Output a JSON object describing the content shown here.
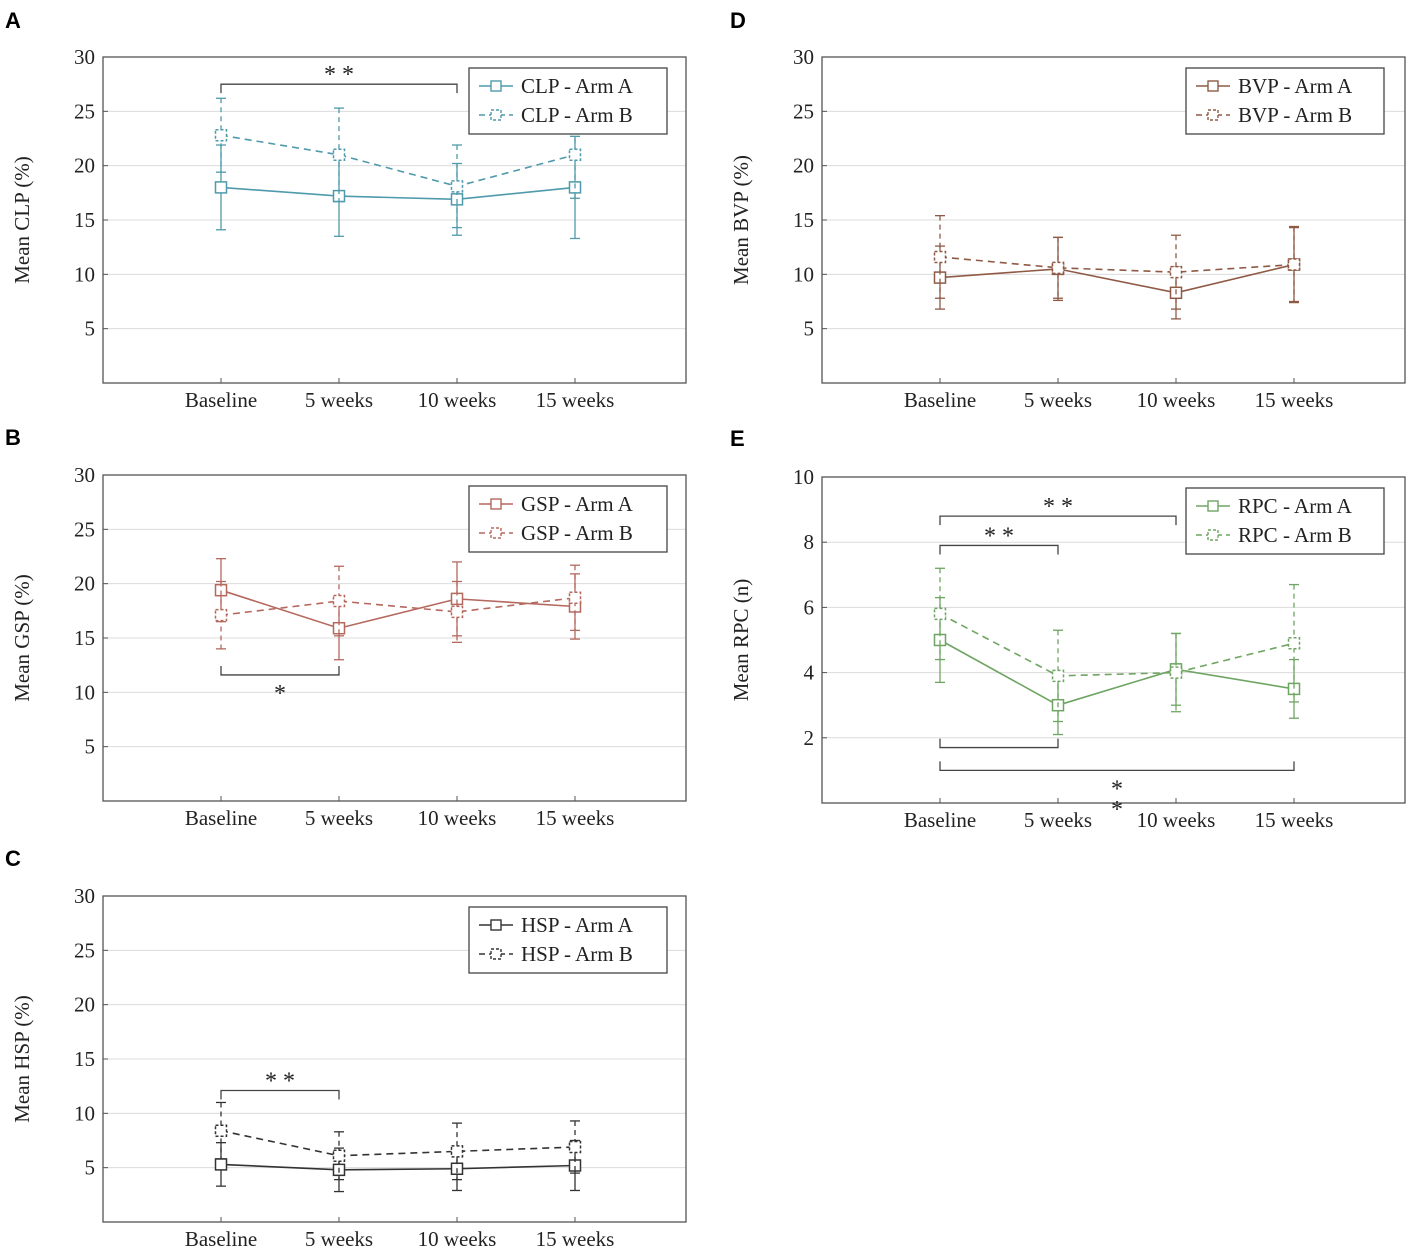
{
  "figure": {
    "x_categories": [
      "Baseline",
      "5 weeks",
      "10 weeks",
      "15 weeks"
    ]
  },
  "chart_data": [
    {
      "panel": "A",
      "type": "line",
      "ylabel": "Mean CLP (%)",
      "ylim": [
        0,
        30
      ],
      "yticks": [
        5,
        10,
        15,
        20,
        25,
        30
      ],
      "categories": [
        "Baseline",
        "5 weeks",
        "10 weeks",
        "15 weeks"
      ],
      "color": "#4f9aab",
      "legend_position": "top-right",
      "grid": true,
      "series": [
        {
          "name": "CLP - Arm A",
          "style": "solid",
          "values": [
            18.0,
            17.2,
            16.9,
            18.0
          ],
          "err": [
            3.9,
            3.7,
            3.3,
            4.7
          ]
        },
        {
          "name": "CLP - Arm B",
          "style": "dashed",
          "values": [
            22.8,
            21.0,
            18.1,
            21.0
          ],
          "err": [
            3.4,
            4.3,
            3.8,
            4.0
          ]
        }
      ],
      "significance": [
        {
          "from": "Baseline",
          "to": "10 weeks",
          "label": "* *",
          "at": 27.5,
          "side": "above"
        }
      ]
    },
    {
      "panel": "B",
      "type": "line",
      "ylabel": "Mean GSP (%)",
      "ylim": [
        0,
        30
      ],
      "yticks": [
        5,
        10,
        15,
        20,
        25,
        30
      ],
      "categories": [
        "Baseline",
        "5 weeks",
        "10 weeks",
        "15 weeks"
      ],
      "color": "#b5685e",
      "legend_position": "top-right",
      "grid": true,
      "series": [
        {
          "name": "GSP - Arm A",
          "style": "solid",
          "values": [
            19.4,
            15.9,
            18.6,
            17.9
          ],
          "err": [
            2.9,
            2.9,
            3.4,
            3.0
          ]
        },
        {
          "name": "GSP - Arm B",
          "style": "dashed",
          "values": [
            17.1,
            18.4,
            17.4,
            18.7
          ],
          "err": [
            3.1,
            3.2,
            2.8,
            3.0
          ]
        }
      ],
      "significance": [
        {
          "from": "Baseline",
          "to": "5 weeks",
          "label": "*",
          "at": 11.6,
          "side": "below"
        }
      ]
    },
    {
      "panel": "C",
      "type": "line",
      "ylabel": "Mean HSP (%)",
      "ylim": [
        0,
        30
      ],
      "yticks": [
        5,
        10,
        15,
        20,
        25,
        30
      ],
      "categories": [
        "Baseline",
        "5 weeks",
        "10 weeks",
        "15 weeks"
      ],
      "color": "#333333",
      "legend_position": "top-right",
      "grid": true,
      "series": [
        {
          "name": "HSP - Arm A",
          "style": "solid",
          "values": [
            5.3,
            4.8,
            4.9,
            5.2
          ],
          "err": [
            2.0,
            2.0,
            2.0,
            2.3
          ]
        },
        {
          "name": "HSP - Arm B",
          "style": "dashed",
          "values": [
            8.4,
            6.1,
            6.5,
            6.9
          ],
          "err": [
            2.6,
            2.2,
            2.6,
            2.4
          ]
        }
      ],
      "significance": [
        {
          "from": "Baseline",
          "to": "5 weeks",
          "label": "* *",
          "at": 12.1,
          "side": "above"
        }
      ]
    },
    {
      "panel": "D",
      "type": "line",
      "ylabel": "Mean BVP (%)",
      "ylim": [
        0,
        30
      ],
      "yticks": [
        5,
        10,
        15,
        20,
        25,
        30
      ],
      "categories": [
        "Baseline",
        "5 weeks",
        "10 weeks",
        "15 weeks"
      ],
      "color": "#8f5a45",
      "legend_position": "top-right",
      "grid": true,
      "series": [
        {
          "name": "BVP - Arm A",
          "style": "solid",
          "values": [
            9.7,
            10.5,
            8.3,
            10.9
          ],
          "err": [
            2.9,
            2.9,
            2.4,
            3.4
          ]
        },
        {
          "name": "BVP - Arm B",
          "style": "dashed",
          "values": [
            11.6,
            10.6,
            10.2,
            10.9
          ],
          "err": [
            3.8,
            2.8,
            3.4,
            3.5
          ]
        }
      ],
      "significance": []
    },
    {
      "panel": "E",
      "type": "line",
      "ylabel": "Mean RPC (n)",
      "ylim": [
        0,
        10
      ],
      "yticks": [
        2,
        4,
        6,
        8,
        10
      ],
      "categories": [
        "Baseline",
        "5 weeks",
        "10 weeks",
        "15 weeks"
      ],
      "color": "#6fa563",
      "legend_position": "top-right",
      "grid": true,
      "series": [
        {
          "name": "RPC - Arm A",
          "style": "solid",
          "values": [
            5.0,
            3.0,
            4.1,
            3.5
          ],
          "err": [
            1.3,
            0.9,
            1.1,
            0.9
          ]
        },
        {
          "name": "RPC - Arm B",
          "style": "dashed",
          "values": [
            5.8,
            3.9,
            4.0,
            4.9
          ],
          "err": [
            1.4,
            1.4,
            1.2,
            1.8
          ]
        }
      ],
      "significance": [
        {
          "from": "Baseline",
          "to": "10 weeks",
          "label": "* *",
          "at": 8.8,
          "side": "above"
        },
        {
          "from": "Baseline",
          "to": "5 weeks",
          "label": "* *",
          "at": 7.9,
          "side": "above"
        },
        {
          "from": "Baseline",
          "to": "5 weeks",
          "label": "",
          "at": 1.7,
          "side": "below"
        },
        {
          "from": "Baseline",
          "to": "15 weeks",
          "label": "*",
          "at": 1.0,
          "side": "below"
        }
      ],
      "extra_marks": [
        {
          "label": "*",
          "x_between": [
            "5 weeks",
            "10 weeks"
          ],
          "at": 0.3
        }
      ]
    }
  ]
}
